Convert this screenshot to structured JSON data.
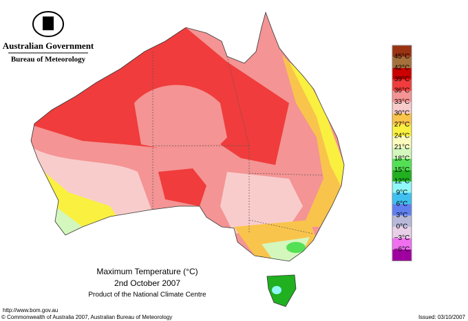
{
  "header": {
    "government": "Australian Government",
    "bureau": "Bureau of Meteorology"
  },
  "map": {
    "title": "Maximum Temperature (°C)",
    "date": "2nd October 2007",
    "product": "Product of the National Climate Centre"
  },
  "legend": {
    "items": [
      {
        "label": "45°C",
        "color": "#9b3212"
      },
      {
        "label": "42°C",
        "color": "#a5703b"
      },
      {
        "label": "39°C",
        "color": "#cc0000"
      },
      {
        "label": "36°C",
        "color": "#f03c3c"
      },
      {
        "label": "33°C",
        "color": "#f49494"
      },
      {
        "label": "30°C",
        "color": "#f9cccc"
      },
      {
        "label": "27°C",
        "color": "#f9c44c"
      },
      {
        "label": "24°C",
        "color": "#f9f040"
      },
      {
        "label": "21°C",
        "color": "#fbfbbe"
      },
      {
        "label": "18°C",
        "color": "#d4f7bd"
      },
      {
        "label": "15°C",
        "color": "#54e054"
      },
      {
        "label": "12°C",
        "color": "#20b020"
      },
      {
        "label": "9°C",
        "color": "#90f8f8"
      },
      {
        "label": "6°C",
        "color": "#40c0f0"
      },
      {
        "label": "3°C",
        "color": "#6080f0"
      },
      {
        "label": "0°C",
        "color": "#b8b8d8"
      },
      {
        "label": "−3°C",
        "color": "#e8d0e8"
      },
      {
        "label": "−6°C",
        "color": "#f070f0"
      }
    ],
    "last_color": "#a000a0"
  },
  "footer": {
    "url": "http://www.bom.gov.au",
    "copyright": "© Commonwealth of Australia 2007, Australian Bureau of Meteorology",
    "issued": "Issued: 03/10/2007"
  }
}
